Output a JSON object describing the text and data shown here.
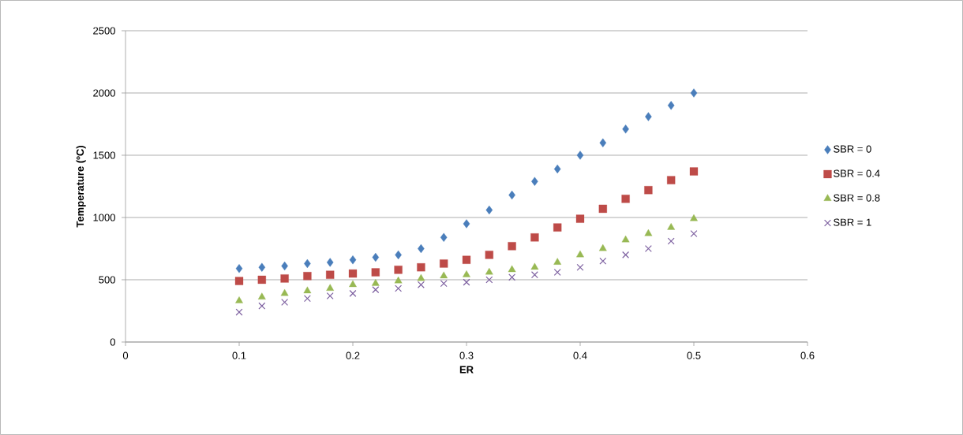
{
  "chart_data": {
    "type": "scatter",
    "xlabel": "ER",
    "ylabel": "Temperature (ºC)",
    "x": [
      0.1,
      0.12,
      0.14,
      0.16,
      0.18,
      0.2,
      0.22,
      0.24,
      0.26,
      0.28,
      0.3,
      0.32,
      0.34,
      0.36,
      0.38,
      0.4,
      0.42,
      0.44,
      0.46,
      0.48,
      0.5
    ],
    "series": [
      {
        "name": "SBR = 0",
        "color": "#4a7ebb",
        "marker": "diamond",
        "values": [
          590,
          600,
          610,
          630,
          640,
          660,
          680,
          700,
          750,
          840,
          950,
          1060,
          1180,
          1290,
          1390,
          1500,
          1600,
          1710,
          1810,
          1900,
          2000
        ]
      },
      {
        "name": "SBR = 0.4",
        "color": "#be4b48",
        "marker": "square",
        "values": [
          490,
          500,
          510,
          530,
          540,
          550,
          560,
          580,
          600,
          630,
          660,
          700,
          770,
          840,
          920,
          990,
          1070,
          1150,
          1220,
          1300,
          1370
        ]
      },
      {
        "name": "SBR = 0.8",
        "color": "#98b954",
        "marker": "triangle",
        "values": [
          330,
          360,
          390,
          410,
          430,
          460,
          470,
          490,
          510,
          530,
          540,
          560,
          580,
          600,
          640,
          700,
          750,
          820,
          870,
          920,
          990
        ]
      },
      {
        "name": "SBR = 1",
        "color": "#7d60a0",
        "marker": "cross",
        "values": [
          240,
          290,
          320,
          350,
          370,
          390,
          420,
          430,
          460,
          470,
          480,
          500,
          520,
          540,
          560,
          600,
          650,
          700,
          750,
          810,
          870
        ]
      }
    ],
    "xlim": [
      0,
      0.6
    ],
    "xticks": [
      0,
      0.1,
      0.2,
      0.3,
      0.4,
      0.5,
      0.6
    ],
    "ylim": [
      0,
      2500
    ],
    "yticks": [
      0,
      500,
      1000,
      1500,
      2000,
      2500
    ],
    "grid": "y",
    "legend": "right"
  }
}
